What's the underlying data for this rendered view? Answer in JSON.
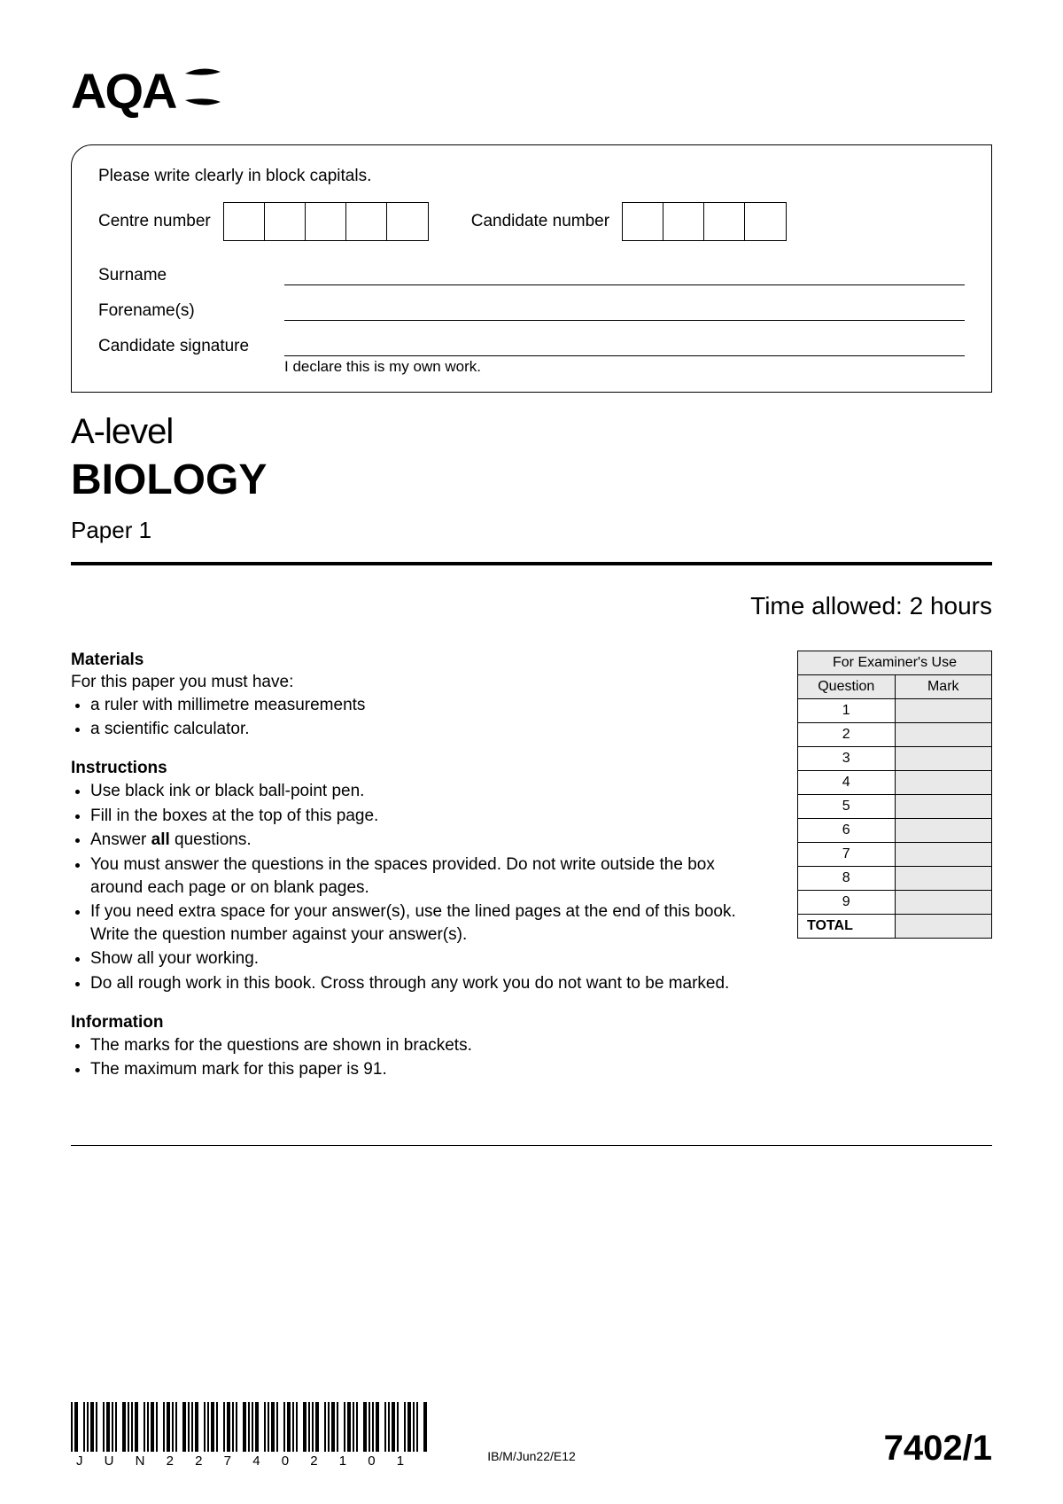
{
  "logo": {
    "text": "AQA"
  },
  "candidate_box": {
    "instruction": "Please write clearly in block capitals.",
    "centre_label": "Centre number",
    "centre_cells": 5,
    "candidate_label": "Candidate number",
    "candidate_cells": 4,
    "surname_label": "Surname",
    "forenames_label": "Forename(s)",
    "signature_label": "Candidate signature",
    "declaration": "I declare this is my own work."
  },
  "title": {
    "level": "A-level",
    "subject": "BIOLOGY",
    "paper": "Paper 1"
  },
  "time": "Time allowed: 2 hours",
  "materials": {
    "heading": "Materials",
    "intro": "For this paper you must have:",
    "items": [
      "a ruler with millimetre measurements",
      "a scientific calculator."
    ]
  },
  "instructions": {
    "heading": "Instructions",
    "items": [
      "Use black ink or black ball-point pen.",
      "Fill in the boxes at the top of this page.",
      "Answer <b>all</b> questions.",
      "You must answer the questions in the spaces provided.  Do not write outside the box around each page or on blank pages.",
      "If you need extra space for your answer(s), use the lined pages at the end of this book.  Write the question number against your answer(s).",
      "Show all your working.",
      "Do all rough work in this book.  Cross through any work you do not want to be marked."
    ]
  },
  "information": {
    "heading": "Information",
    "items": [
      "The marks for the questions are shown in brackets.",
      "The maximum mark for this paper is 91."
    ]
  },
  "examiner_table": {
    "title": "For Examiner's Use",
    "col_question": "Question",
    "col_mark": "Mark",
    "rows": [
      "1",
      "2",
      "3",
      "4",
      "5",
      "6",
      "7",
      "8",
      "9"
    ],
    "total_label": "TOTAL"
  },
  "footer": {
    "barcode_text": "JUN227402101",
    "center_code": "IB/M/Jun22/E12",
    "paper_code": "7402/1"
  },
  "colors": {
    "border": "#000000",
    "shade": "#e9e9e9",
    "background": "#ffffff"
  }
}
